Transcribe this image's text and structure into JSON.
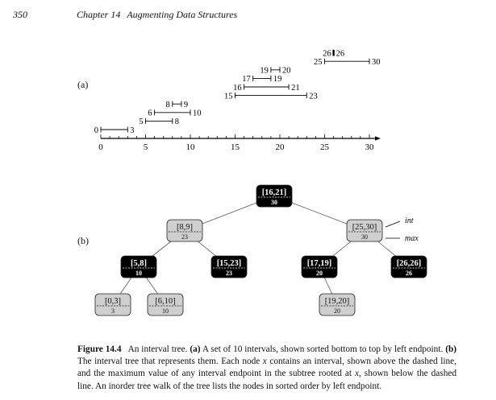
{
  "header": {
    "page_number": "350",
    "chapter": "Chapter 14",
    "chapter_title": "Augmenting Data Structures"
  },
  "panel_labels": {
    "a": "(a)",
    "b": "(b)"
  },
  "chart_data": {
    "type": "interval-plot",
    "axis": {
      "min": 0,
      "max": 30,
      "ticks": [
        0,
        5,
        10,
        15,
        20,
        25,
        30
      ]
    },
    "intervals": [
      {
        "low": 0,
        "high": 3,
        "left_label": "0",
        "right_label": "3"
      },
      {
        "low": 5,
        "high": 8,
        "left_label": "5",
        "right_label": "8"
      },
      {
        "low": 6,
        "high": 10,
        "left_label": "6",
        "right_label": "10"
      },
      {
        "low": 8,
        "high": 9,
        "left_label": "8",
        "right_label": "9"
      },
      {
        "low": 15,
        "high": 23,
        "left_label": "15",
        "right_label": "23"
      },
      {
        "low": 16,
        "high": 21,
        "left_label": "16",
        "right_label": "21"
      },
      {
        "low": 17,
        "high": 19,
        "left_label": "17",
        "right_label": "19"
      },
      {
        "low": 19,
        "high": 20,
        "left_label": "19",
        "right_label": "20"
      },
      {
        "low": 25,
        "high": 30,
        "left_label": "25",
        "right_label": "30"
      },
      {
        "low": 26,
        "high": 26,
        "left_label": "26",
        "right_label": "26"
      }
    ]
  },
  "tree": {
    "nodes": [
      {
        "id": "n16",
        "interval": "[16,21]",
        "max": "30",
        "color": "black"
      },
      {
        "id": "n8",
        "interval": "[8,9]",
        "max": "23",
        "color": "gray"
      },
      {
        "id": "n25",
        "interval": "[25,30]",
        "max": "30",
        "color": "gray"
      },
      {
        "id": "n5",
        "interval": "[5,8]",
        "max": "10",
        "color": "black"
      },
      {
        "id": "n15",
        "interval": "[15,23]",
        "max": "23",
        "color": "black"
      },
      {
        "id": "n17",
        "interval": "[17,19]",
        "max": "20",
        "color": "black"
      },
      {
        "id": "n26",
        "interval": "[26,26]",
        "max": "26",
        "color": "black"
      },
      {
        "id": "n0",
        "interval": "[0,3]",
        "max": "3",
        "color": "gray"
      },
      {
        "id": "n6",
        "interval": "[6,10]",
        "max": "10",
        "color": "gray"
      },
      {
        "id": "n19",
        "interval": "[19,20]",
        "max": "20",
        "color": "gray"
      }
    ],
    "edges": [
      [
        "n16",
        "n8"
      ],
      [
        "n16",
        "n25"
      ],
      [
        "n8",
        "n5"
      ],
      [
        "n8",
        "n15"
      ],
      [
        "n25",
        "n17"
      ],
      [
        "n25",
        "n26"
      ],
      [
        "n5",
        "n0"
      ],
      [
        "n5",
        "n6"
      ],
      [
        "n17",
        "n19"
      ]
    ],
    "annotations": {
      "int": "int",
      "max": "max"
    }
  },
  "colors": {
    "black_node": "#000000",
    "gray_node": "#cfcfcf"
  },
  "caption": {
    "figure_label": "Figure 14.4",
    "s1": "An interval tree.",
    "s2_label": "(a)",
    "s2": "A set of 10 intervals, shown sorted bottom to top by left endpoint.",
    "s3_label": "(b)",
    "s3_a": "The interval tree that represents them. Each node",
    "var_x": "x",
    "s3_b": "contains an interval, shown above the dashed line, and the maximum value of any interval endpoint in the subtree rooted at",
    "s3_c": ", shown below the dashed line. An inorder tree walk of the tree lists the nodes in sorted order by left endpoint."
  }
}
